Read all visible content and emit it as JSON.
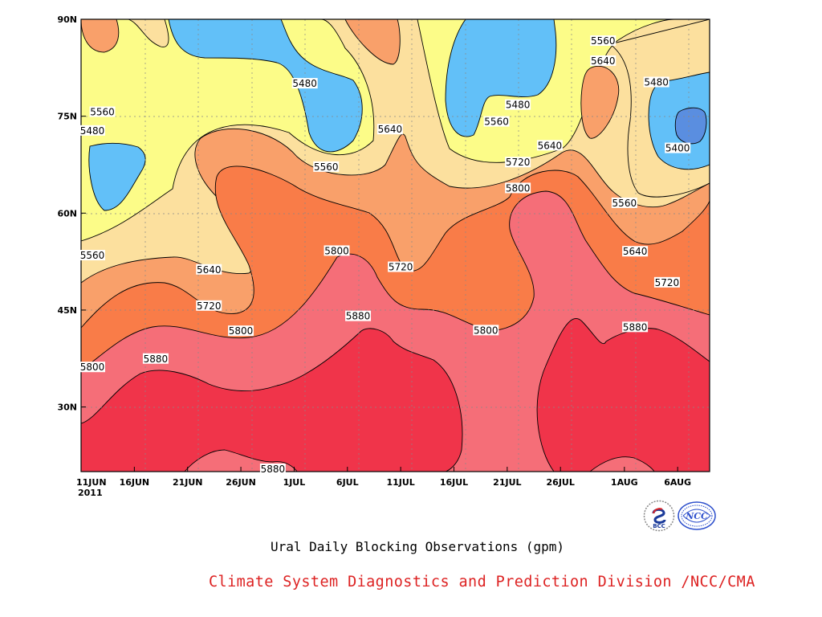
{
  "chart_data": {
    "type": "contour",
    "title": "Ural Daily Blocking Observations (gpm)",
    "x_ticks": [
      "11JUN",
      "16JUN",
      "21JUN",
      "26JUN",
      "1JUL",
      "6JUL",
      "11JUL",
      "16JUL",
      "21JUL",
      "26JUL",
      "1AUG",
      "6AUG"
    ],
    "x_year": "2011",
    "x_range": [
      "2011-06-11",
      "2011-08-09"
    ],
    "y_ticks": [
      "30N",
      "45N",
      "60N",
      "75N",
      "90N"
    ],
    "y_range": [
      20,
      90
    ],
    "grid": true,
    "levels": [
      5400,
      5480,
      5560,
      5640,
      5720,
      5800,
      5880
    ],
    "fill_colors": {
      "below_5400": "#5a8ee0",
      "5400_5480": "#62c0f8",
      "5480_5560": "#fcfc88",
      "5560_5640": "#fce09e",
      "5640_5720": "#f9a06a",
      "5720_5800": "#f97c48",
      "5800_5880": "#f56e78",
      "above_5880": "#f0344a"
    },
    "contour_labels": [
      {
        "text": "5560",
        "date": "2011-06-13",
        "lat": 75.7
      },
      {
        "text": "5480",
        "date": "2011-06-11",
        "lat": 72.8
      },
      {
        "text": "5560",
        "date": "2011-06-11",
        "lat": 53.5
      },
      {
        "text": "5800",
        "date": "2011-06-11",
        "lat": 36.2
      },
      {
        "text": "5880",
        "date": "2011-06-18",
        "lat": 37.5
      },
      {
        "text": "5640",
        "date": "2011-06-23",
        "lat": 51.3
      },
      {
        "text": "5720",
        "date": "2011-06-23",
        "lat": 45.7
      },
      {
        "text": "5800",
        "date": "2011-06-26",
        "lat": 41.8
      },
      {
        "text": "5880",
        "date": "2011-06-29",
        "lat": 20.1
      },
      {
        "text": "5480",
        "date": "2011-07-02",
        "lat": 80.1
      },
      {
        "text": "5560",
        "date": "2011-07-04",
        "lat": 67.2
      },
      {
        "text": "5800",
        "date": "2011-07-05",
        "lat": 54.2
      },
      {
        "text": "5880",
        "date": "2011-07-07",
        "lat": 44.1
      },
      {
        "text": "5640",
        "date": "2011-07-10",
        "lat": 73.0
      },
      {
        "text": "5720",
        "date": "2011-07-11",
        "lat": 51.7
      },
      {
        "text": "5800",
        "date": "2011-07-19",
        "lat": 41.9
      },
      {
        "text": "5560",
        "date": "2011-07-20",
        "lat": 74.2
      },
      {
        "text": "5480",
        "date": "2011-07-22",
        "lat": 76.8
      },
      {
        "text": "5720",
        "date": "2011-07-22",
        "lat": 67.9
      },
      {
        "text": "5800",
        "date": "2011-07-22",
        "lat": 63.9
      },
      {
        "text": "5640",
        "date": "2011-07-25",
        "lat": 70.5
      },
      {
        "text": "5560",
        "date": "2011-07-30",
        "lat": 86.7
      },
      {
        "text": "5640",
        "date": "2011-07-30",
        "lat": 83.6
      },
      {
        "text": "5560",
        "date": "2011-08-01",
        "lat": 61.6
      },
      {
        "text": "5880",
        "date": "2011-08-02",
        "lat": 42.4
      },
      {
        "text": "5640",
        "date": "2011-08-02",
        "lat": 54.1
      },
      {
        "text": "5480",
        "date": "2011-08-04",
        "lat": 80.3
      },
      {
        "text": "5720",
        "date": "2011-08-05",
        "lat": 49.3
      },
      {
        "text": "5400",
        "date": "2011-08-06",
        "lat": 70.1
      }
    ]
  },
  "caption": "Climate System Diagnostics and Prediction Division /NCC/CMA",
  "logos": [
    {
      "name": "bcc-logo",
      "text": "BCC"
    },
    {
      "name": "ncc-logo",
      "text": "NCC"
    }
  ]
}
